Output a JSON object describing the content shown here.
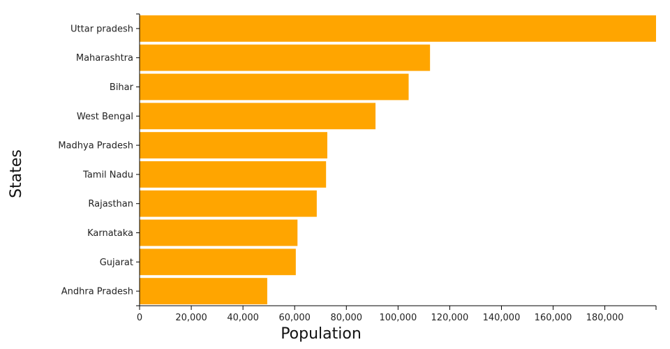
{
  "chart_data": {
    "type": "bar",
    "orientation": "horizontal",
    "categories": [
      "Uttar pradesh",
      "Maharashtra",
      "Bihar",
      "West Bengal",
      "Madhya Pradesh",
      "Tamil Nadu",
      "Rajasthan",
      "Karnataka",
      "Gujarat",
      "Andhra Pradesh"
    ],
    "values": [
      199812,
      112372,
      104099,
      91276,
      72627,
      72147,
      68548,
      61095,
      60440,
      49387
    ],
    "xlabel": "Population",
    "ylabel": "States",
    "xlim": [
      0,
      199812
    ],
    "x_ticks": [
      0,
      20000,
      40000,
      60000,
      80000,
      100000,
      120000,
      140000,
      160000,
      180000
    ],
    "x_tick_labels": [
      "0",
      "20,000",
      "40,000",
      "60,000",
      "80,000",
      "100,000",
      "120,000",
      "140,000",
      "160,000",
      "180,000"
    ],
    "grid": false,
    "bar_color": "#ffa500"
  }
}
